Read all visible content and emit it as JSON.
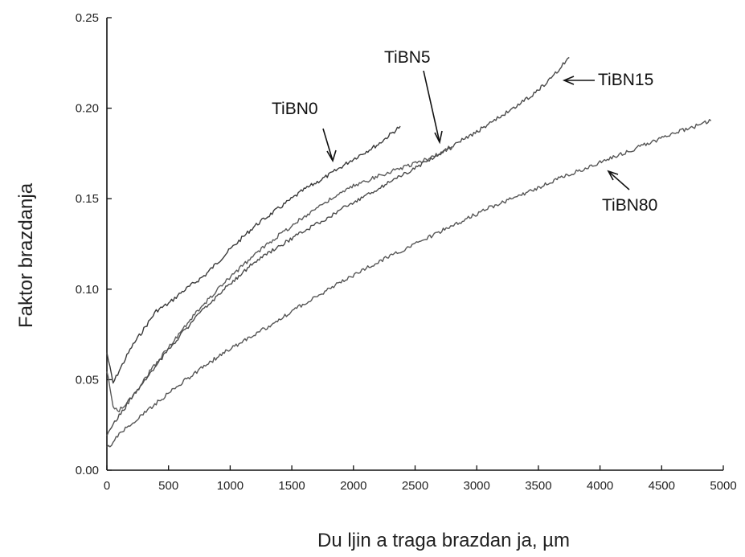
{
  "chart_data": {
    "type": "line",
    "xlabel": "Du ljin a traga brazdan ja, µm",
    "ylabel": "Faktor brazdanja",
    "xlim": [
      0,
      5000
    ],
    "ylim": [
      0,
      0.25
    ],
    "x_ticks": [
      "0",
      "500",
      "1000",
      "1500",
      "2000",
      "2500",
      "3000",
      "3500",
      "4000",
      "4500",
      "5000"
    ],
    "y_ticks": [
      "0.00",
      "0.05",
      "0.10",
      "0.15",
      "0.20",
      "0.25"
    ],
    "grid": false,
    "series": [
      {
        "name": "TiBN0",
        "x": [
          0,
          50,
          100,
          200,
          300,
          400,
          500,
          600,
          800,
          1000,
          1200,
          1400,
          1600,
          1800,
          2000,
          2200,
          2380
        ],
        "y": [
          0.065,
          0.048,
          0.055,
          0.068,
          0.078,
          0.088,
          0.092,
          0.098,
          0.108,
          0.122,
          0.135,
          0.145,
          0.155,
          0.163,
          0.172,
          0.18,
          0.19
        ]
      },
      {
        "name": "TiBN5",
        "x": [
          0,
          50,
          100,
          200,
          300,
          500,
          700,
          900,
          1100,
          1300,
          1500,
          1700,
          2000,
          2300,
          2600,
          2800
        ],
        "y": [
          0.055,
          0.035,
          0.033,
          0.04,
          0.05,
          0.068,
          0.085,
          0.1,
          0.113,
          0.125,
          0.135,
          0.145,
          0.157,
          0.165,
          0.172,
          0.178
        ]
      },
      {
        "name": "TiBN15",
        "x": [
          0,
          50,
          100,
          200,
          400,
          600,
          800,
          1000,
          1200,
          1500,
          1800,
          2100,
          2400,
          2700,
          3000,
          3300,
          3500,
          3650,
          3750
        ],
        "y": [
          0.02,
          0.025,
          0.03,
          0.04,
          0.058,
          0.075,
          0.09,
          0.103,
          0.115,
          0.128,
          0.14,
          0.152,
          0.163,
          0.175,
          0.187,
          0.2,
          0.21,
          0.22,
          0.228
        ]
      },
      {
        "name": "TiBN80",
        "x": [
          0,
          50,
          100,
          200,
          400,
          600,
          800,
          1000,
          1300,
          1600,
          1900,
          2200,
          2500,
          2800,
          3100,
          3400,
          3700,
          4000,
          4300,
          4600,
          4900
        ],
        "y": [
          0.012,
          0.015,
          0.02,
          0.026,
          0.037,
          0.048,
          0.058,
          0.067,
          0.079,
          0.092,
          0.104,
          0.115,
          0.125,
          0.135,
          0.145,
          0.153,
          0.162,
          0.17,
          0.178,
          0.186,
          0.193
        ]
      }
    ],
    "annotations": [
      "TiBN0",
      "TiBN5",
      "TiBN15",
      "TiBN80"
    ]
  },
  "colors": {
    "axis": "#111111",
    "series": [
      "#3a3a3a",
      "#5a5a5a",
      "#4a4a4a",
      "#555555"
    ]
  }
}
